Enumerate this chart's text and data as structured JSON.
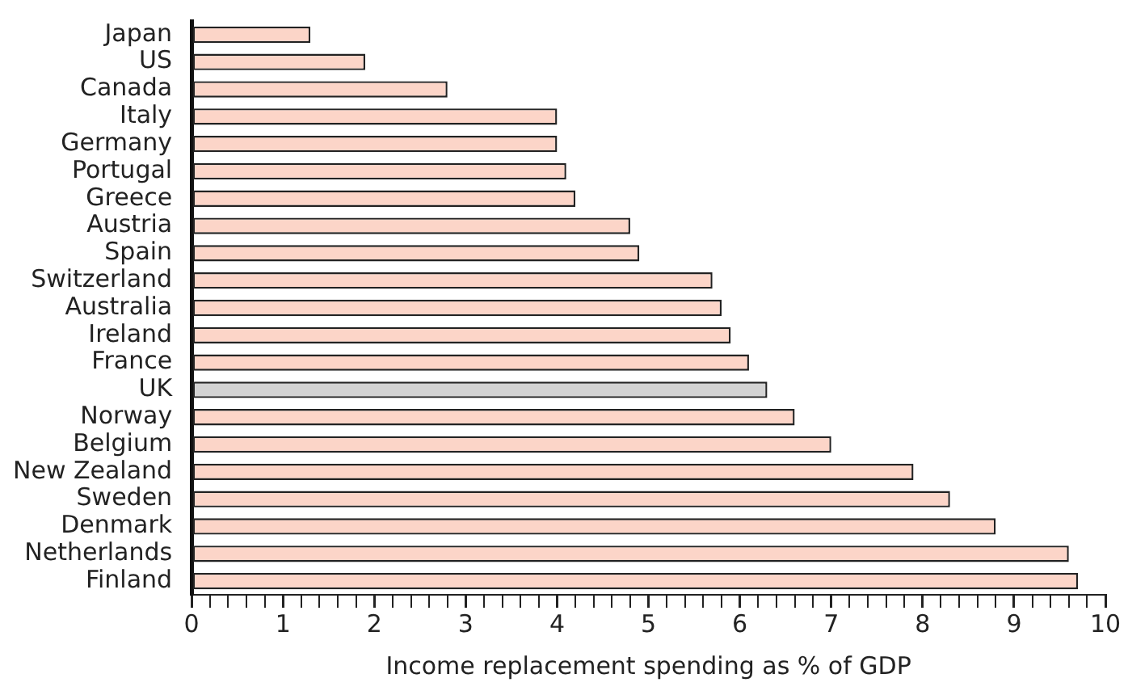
{
  "chart_data": {
    "type": "bar",
    "orientation": "horizontal",
    "xlabel": "Income replacement spending as % of GDP",
    "categories": [
      "Japan",
      "US",
      "Canada",
      "Italy",
      "Germany",
      "Portugal",
      "Greece",
      "Austria",
      "Spain",
      "Switzerland",
      "Australia",
      "Ireland",
      "France",
      "UK",
      "Norway",
      "Belgium",
      "New Zealand",
      "Sweden",
      "Denmark",
      "Netherlands",
      "Finland"
    ],
    "values": [
      1.3,
      1.9,
      2.8,
      4.0,
      4.0,
      4.1,
      4.2,
      4.8,
      4.9,
      5.7,
      5.8,
      5.9,
      6.1,
      6.3,
      6.6,
      7.0,
      7.9,
      8.3,
      8.8,
      9.6,
      9.7
    ],
    "colors": [
      "#fcd5c8",
      "#fcd5c8",
      "#fcd5c8",
      "#fcd5c8",
      "#fcd5c8",
      "#fcd5c8",
      "#fcd5c8",
      "#fcd5c8",
      "#fcd5c8",
      "#fcd5c8",
      "#fcd5c8",
      "#fcd5c8",
      "#fcd5c8",
      "#d3d3d3",
      "#fcd5c8",
      "#fcd5c8",
      "#fcd5c8",
      "#fcd5c8",
      "#fcd5c8",
      "#fcd5c8",
      "#fcd5c8"
    ],
    "xlim": [
      0,
      10
    ],
    "xticks": [
      0,
      {
        "value": 0.2,
        "label": null
      },
      {
        "value": 0.4,
        "label": null
      },
      {
        "value": 0.6,
        "label": null
      },
      {
        "value": 0.8,
        "label": null
      },
      1,
      {
        "value": 1.2,
        "label": null
      },
      {
        "value": 1.4,
        "label": null
      },
      {
        "value": 1.6,
        "label": null
      },
      {
        "value": 1.8,
        "label": null
      },
      2,
      {
        "value": 2.2,
        "label": null
      },
      {
        "value": 2.4,
        "label": null
      },
      {
        "value": 2.6,
        "label": null
      },
      {
        "value": 2.8,
        "label": null
      },
      3,
      {
        "value": 3.2,
        "label": null
      },
      {
        "value": 3.4,
        "label": null
      },
      {
        "value": 3.6,
        "label": null
      },
      {
        "value": 3.8,
        "label": null
      },
      4,
      {
        "value": 4.2,
        "label": null
      },
      {
        "value": 4.4,
        "label": null
      },
      {
        "value": 4.6,
        "label": null
      },
      {
        "value": 4.8,
        "label": null
      },
      5,
      {
        "value": 5.2,
        "label": null
      },
      {
        "value": 5.4,
        "label": null
      },
      {
        "value": 5.6,
        "label": null
      },
      {
        "value": 5.8,
        "label": null
      },
      6,
      {
        "value": 6.2,
        "label": null
      },
      {
        "value": 6.4,
        "label": null
      },
      {
        "value": 6.6,
        "label": null
      },
      {
        "value": 6.8,
        "label": null
      },
      7,
      {
        "value": 7.2,
        "label": null
      },
      {
        "value": 7.4,
        "label": null
      },
      {
        "value": 7.6,
        "label": null
      },
      {
        "value": 7.8,
        "label": null
      },
      8,
      {
        "value": 8.2,
        "label": null
      },
      {
        "value": 8.4,
        "label": null
      },
      {
        "value": 8.6,
        "label": null
      },
      {
        "value": 8.8,
        "label": null
      },
      9,
      {
        "value": 9.2,
        "label": null
      },
      {
        "value": 9.4,
        "label": null
      },
      {
        "value": 9.6,
        "label": null
      },
      {
        "value": 9.8,
        "label": null
      },
      10
    ],
    "grid": false,
    "legend": false
  }
}
